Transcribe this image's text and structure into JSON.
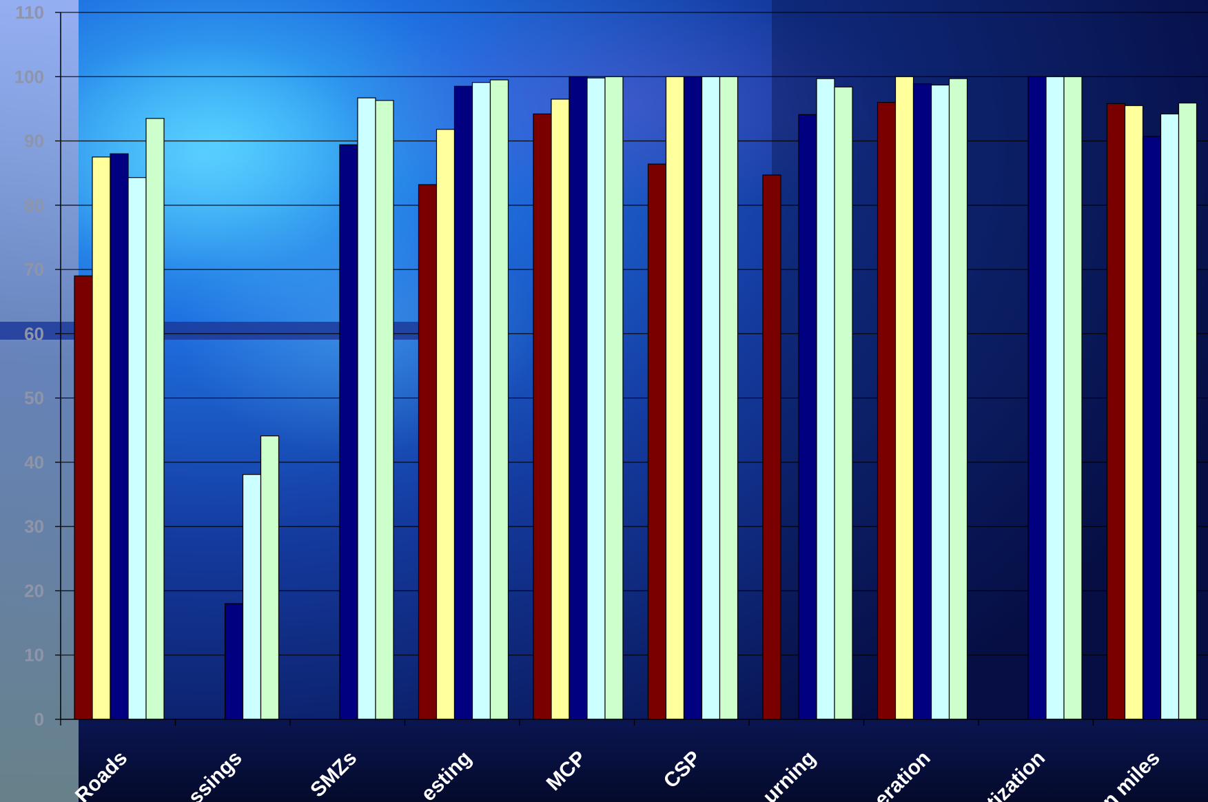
{
  "chart_data": {
    "type": "bar",
    "title": "",
    "xlabel": "",
    "ylabel": "",
    "ylim": [
      0,
      110
    ],
    "yticks": [
      0,
      10,
      20,
      30,
      40,
      50,
      60,
      70,
      80,
      90,
      100,
      110
    ],
    "grid": true,
    "categories": [
      "Roads",
      "ssings",
      "SMZs",
      "esting",
      "MCP",
      "CSP",
      "urning",
      "eration",
      "tization",
      "n miles"
    ],
    "series": [
      {
        "color": "#7a0000",
        "values": [
          69,
          null,
          null,
          83.2,
          94.2,
          86.4,
          84.7,
          96,
          null,
          95.8
        ]
      },
      {
        "color": "#ffff9c",
        "values": [
          87.5,
          null,
          null,
          91.8,
          96.5,
          100,
          null,
          100,
          null,
          95.5
        ]
      },
      {
        "color": "#000080",
        "values": [
          88,
          18,
          89.4,
          98.5,
          100,
          100,
          94.1,
          98.9,
          100,
          90.7
        ]
      },
      {
        "color": "#ccffff",
        "values": [
          84.3,
          38.1,
          96.7,
          99.1,
          99.8,
          100,
          99.7,
          98.7,
          100,
          94.2
        ]
      },
      {
        "color": "#ccffcc",
        "values": [
          93.5,
          44.1,
          96.3,
          99.5,
          100,
          100,
          98.4,
          99.7,
          100,
          95.9
        ]
      }
    ]
  }
}
